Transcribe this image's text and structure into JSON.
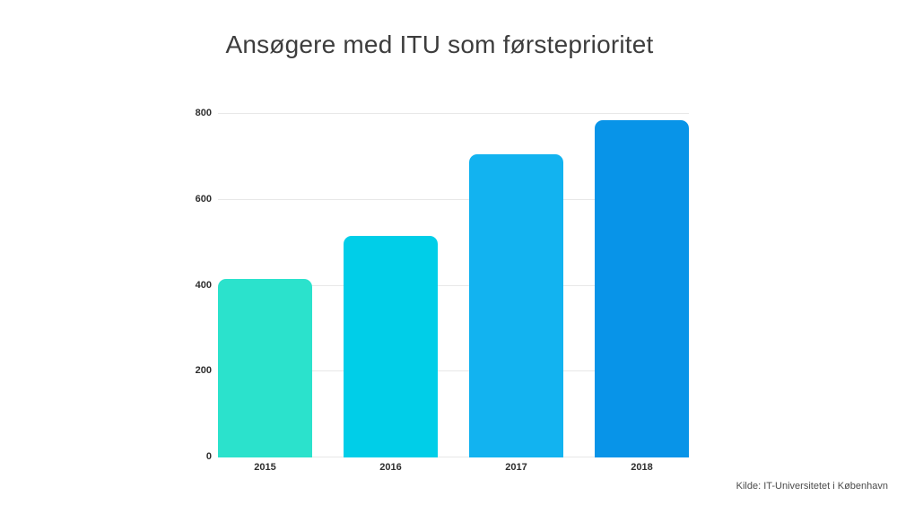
{
  "title": "Ansøgere med ITU som førsteprioritet",
  "source": "Kilde: IT-Universitetet i København",
  "colors": {
    "background": "#ffffff",
    "title_text": "#3d3d3d",
    "axis_text": "#2e2e2e",
    "gridline": "#e8e8e8",
    "source_text": "#4c4c4c"
  },
  "chart_data": {
    "type": "bar",
    "title": "Ansøgere med ITU som førsteprioritet",
    "categories": [
      "2015",
      "2016",
      "2017",
      "2018"
    ],
    "values": [
      415,
      515,
      705,
      785
    ],
    "bar_colors": [
      "#2BE2CC",
      "#00CEE8",
      "#12B3F0",
      "#0894E8"
    ],
    "xlabel": "",
    "ylabel": "",
    "ylim": [
      0,
      800
    ],
    "yticks": [
      0,
      200,
      400,
      600,
      800
    ],
    "grid": true,
    "legend": false,
    "annotation": "Kilde: IT-Universitetet i København"
  }
}
